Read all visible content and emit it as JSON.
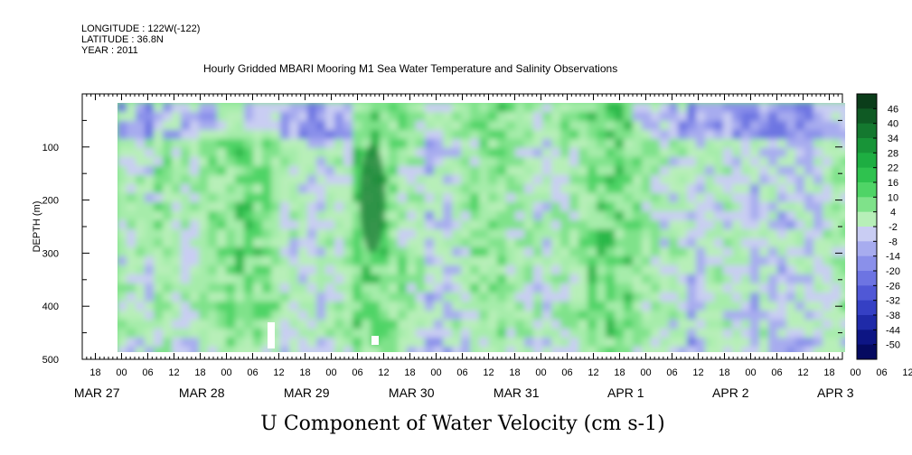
{
  "header": {
    "longitude": "LONGITUDE : 122W(-122)",
    "latitude": "LATITUDE : 36.8N",
    "year": "YEAR : 2011",
    "title": "Hourly Gridded MBARI Mooring M1 Sea Water Temperature and Salinity Observations"
  },
  "chart_data": {
    "type": "heatmap",
    "title": "Hourly Gridded MBARI Mooring M1 Sea Water Temperature and Salinity Observations",
    "xlabel": "U Component of Water Velocity (cm s-1)",
    "ylabel": "DEPTH (m)",
    "ylim": [
      500,
      0
    ],
    "y_ticks": [
      100,
      200,
      300,
      400,
      500
    ],
    "x_range_hours": [
      "2011-03-27T15:00",
      "2011-04-03T18:00"
    ],
    "hour_tick_labels": [
      "18",
      "00",
      "06",
      "12",
      "18",
      "00",
      "06",
      "12",
      "18",
      "00",
      "06",
      "12",
      "18",
      "00",
      "06",
      "12",
      "18",
      "00",
      "06",
      "12",
      "18",
      "00",
      "06",
      "12",
      "18",
      "00",
      "06",
      "12",
      "18",
      "00",
      "06",
      "12"
    ],
    "date_labels": [
      "MAR 27",
      "MAR 28",
      "MAR 29",
      "MAR 30",
      "MAR 31",
      "APR  1",
      "APR  2",
      "APR  3"
    ],
    "colorbar_labels": [
      "46",
      "40",
      "34",
      "28",
      "22",
      "16",
      "10",
      "4",
      "-2",
      "-8",
      "-14",
      "-20",
      "-26",
      "-32",
      "-38",
      "-44",
      "-50"
    ],
    "colorbar_colors": [
      "#0b3d1a",
      "#0f5a24",
      "#14782f",
      "#189438",
      "#1eae42",
      "#2fc24f",
      "#4fd466",
      "#7fe28a",
      "#b7efb8",
      "#c9cdf3",
      "#a7acef",
      "#8a90ea",
      "#6d74e2",
      "#5058d6",
      "#3540c4",
      "#1f2aa8",
      "#0d1584",
      "#050a60"
    ],
    "grid": false
  }
}
